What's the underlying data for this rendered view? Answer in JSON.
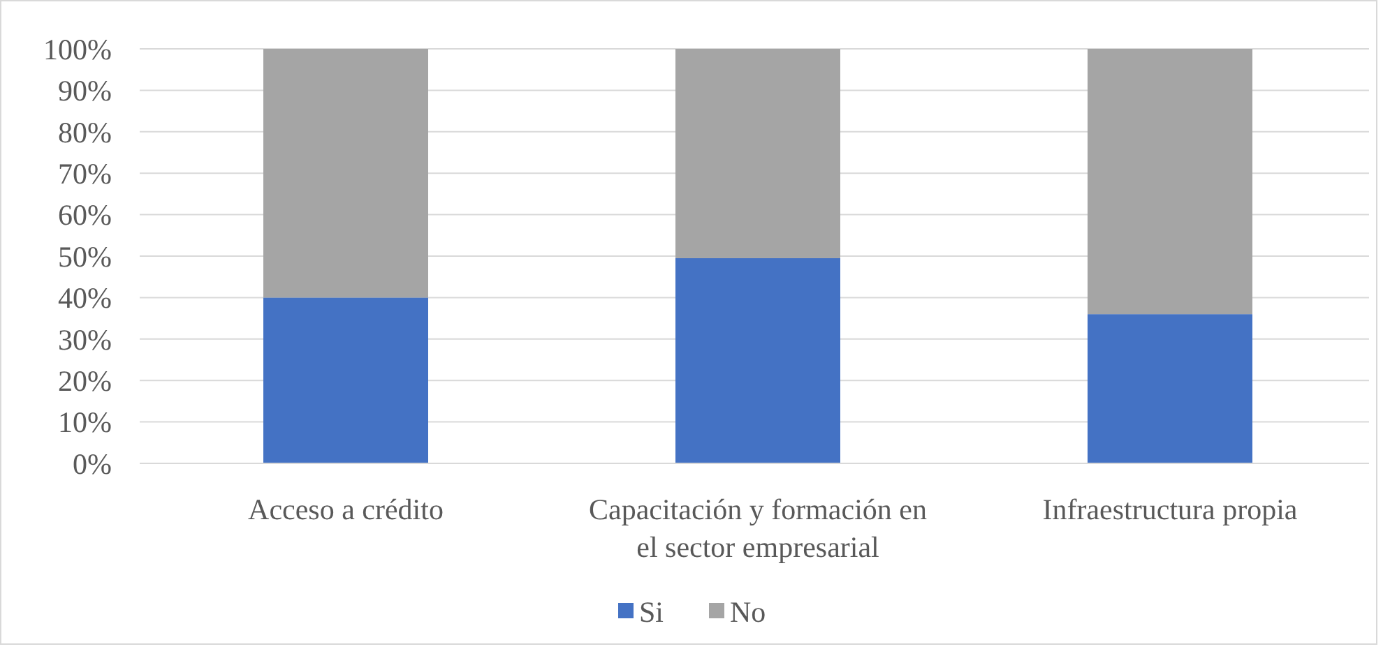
{
  "chart_data": {
    "type": "bar",
    "stacked": true,
    "categories": [
      "Acceso a crédito",
      "Capacitación y formación en el sector empresarial",
      "Infraestructura propia"
    ],
    "series": [
      {
        "name": "Si",
        "color": "#4472c4",
        "values": [
          40,
          49.5,
          36
        ]
      },
      {
        "name": "No",
        "color": "#a5a5a5",
        "values": [
          60,
          50.5,
          64
        ]
      }
    ],
    "ylim": [
      0,
      100
    ],
    "yticks": [
      {
        "value": 0,
        "label": "0%"
      },
      {
        "value": 10,
        "label": "10%"
      },
      {
        "value": 20,
        "label": "20%"
      },
      {
        "value": 30,
        "label": "30%"
      },
      {
        "value": 40,
        "label": "40%"
      },
      {
        "value": 50,
        "label": "50%"
      },
      {
        "value": 60,
        "label": "60%"
      },
      {
        "value": 70,
        "label": "70%"
      },
      {
        "value": 80,
        "label": "80%"
      },
      {
        "value": 90,
        "label": "90%"
      },
      {
        "value": 100,
        "label": "100%"
      }
    ],
    "grid": "y",
    "legend": "bottom"
  }
}
